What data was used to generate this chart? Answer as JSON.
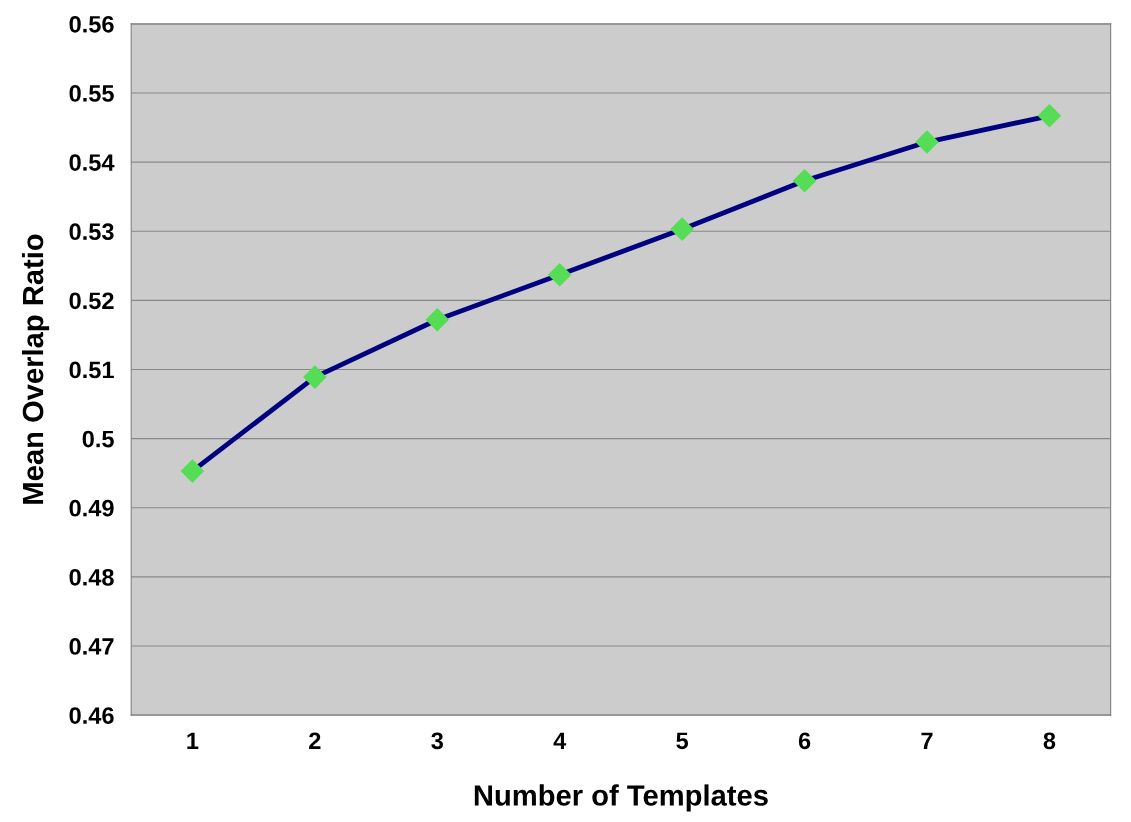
{
  "chart_data": {
    "type": "line",
    "xlabel": "Number of Templates",
    "ylabel": "Mean Overlap Ratio",
    "categories": [
      "1",
      "2",
      "3",
      "4",
      "5",
      "6",
      "7",
      "8"
    ],
    "series": [
      {
        "color": "#000080",
        "values": [
          0.4953,
          0.5089,
          0.5172,
          0.5237,
          0.5303,
          0.5373,
          0.5429,
          0.5467
        ]
      }
    ],
    "ylim": [
      0.46,
      0.56
    ],
    "yticks": [
      {
        "value": 0.46,
        "label": "0.46"
      },
      {
        "value": 0.47,
        "label": "0.47"
      },
      {
        "value": 0.48,
        "label": "0.48"
      },
      {
        "value": 0.49,
        "label": "0.49"
      },
      {
        "value": 0.5,
        "label": "0.5"
      },
      {
        "value": 0.51,
        "label": "0.51"
      },
      {
        "value": 0.52,
        "label": "0.52"
      },
      {
        "value": 0.53,
        "label": "0.53"
      },
      {
        "value": 0.54,
        "label": "0.54"
      },
      {
        "value": 0.55,
        "label": "0.55"
      },
      {
        "value": 0.56,
        "label": "0.56"
      }
    ],
    "grid": "y",
    "marker": "diamond",
    "line_style": "solid"
  }
}
